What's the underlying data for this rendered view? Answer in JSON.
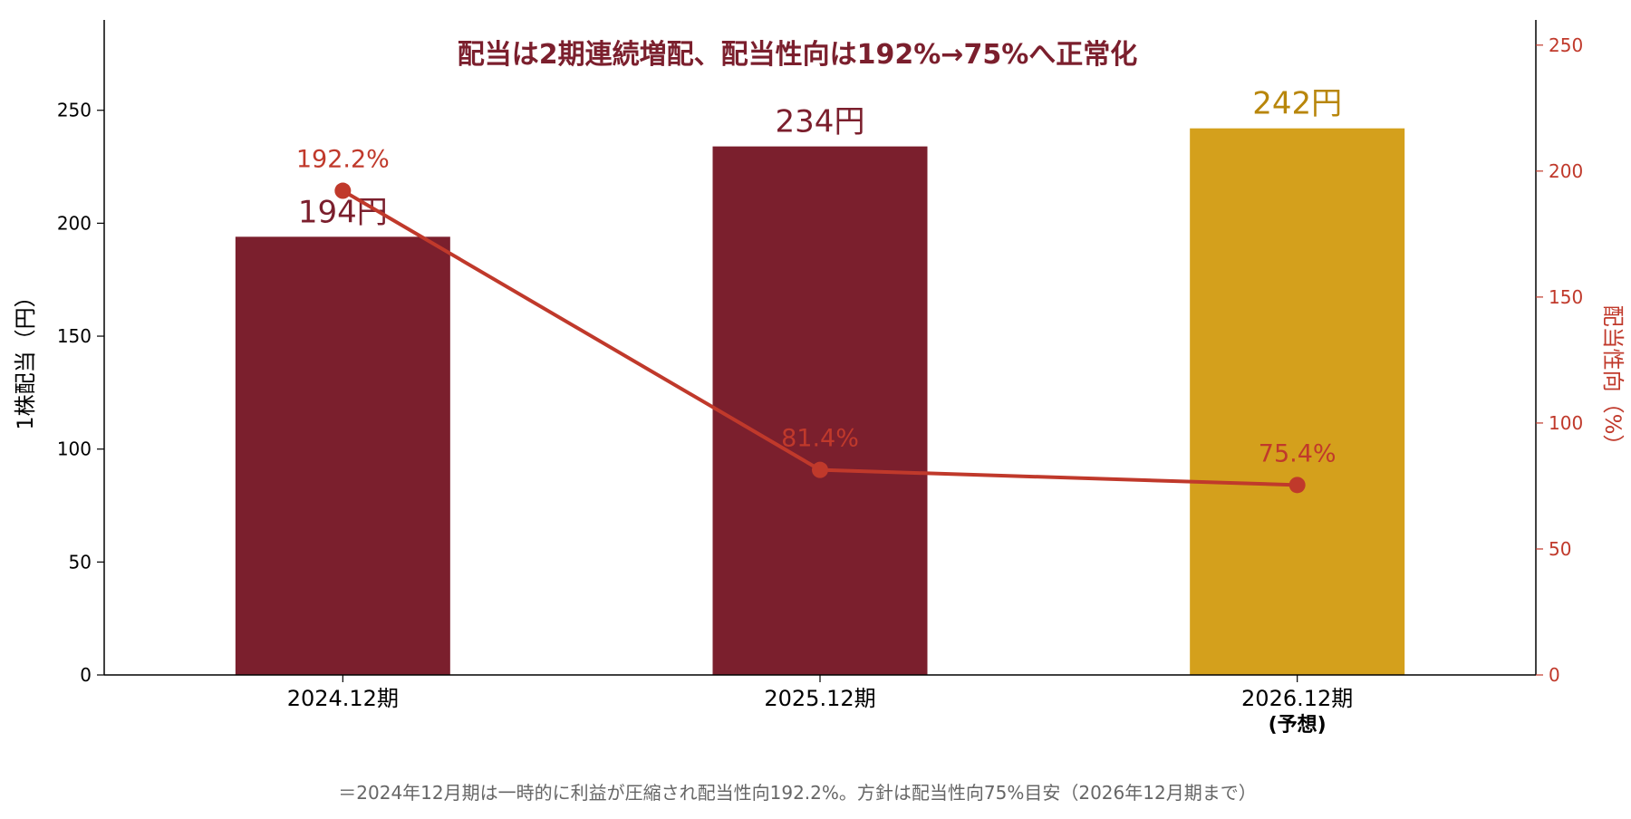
{
  "chart_data": {
    "type": "bar",
    "title": "配当は2期連続増配、配当性向は192%→75%へ正常化",
    "categories": [
      {
        "label": "2024.12期",
        "sublabel": ""
      },
      {
        "label": "2025.12期",
        "sublabel": ""
      },
      {
        "label": "2026.12期",
        "sublabel": "(予想)"
      }
    ],
    "series": [
      {
        "kind": "bar",
        "axis": "left",
        "values": [
          194,
          234,
          242
        ],
        "value_labels": [
          "194円",
          "234円",
          "242円"
        ],
        "colors": [
          "#7b1f2d",
          "#7b1f2d",
          "#d4a01c"
        ],
        "label_colors": [
          "#7b1f2d",
          "#7b1f2d",
          "#b8860b"
        ]
      },
      {
        "kind": "line",
        "axis": "right",
        "values": [
          192.2,
          81.4,
          75.4
        ],
        "value_labels": [
          "192.2%",
          "81.4%",
          "75.4%"
        ],
        "color": "#c0392b"
      }
    ],
    "y_left": {
      "label": "1株配当（円）",
      "ylim": [
        0,
        290
      ],
      "ticks": [
        0,
        50,
        100,
        150,
        200,
        250
      ]
    },
    "y_right": {
      "label": "配当性向（%）",
      "ylim": [
        0,
        260
      ],
      "ticks": [
        0,
        50,
        100,
        150,
        200,
        250
      ],
      "color": "#c0392b"
    },
    "grid": false,
    "title_color": "#7b1f2d",
    "footnote": "＝2024年12月期は一時的に利益が圧縮され配当性向192.2%。方針は配当性向75%目安（2026年12月期まで）"
  }
}
